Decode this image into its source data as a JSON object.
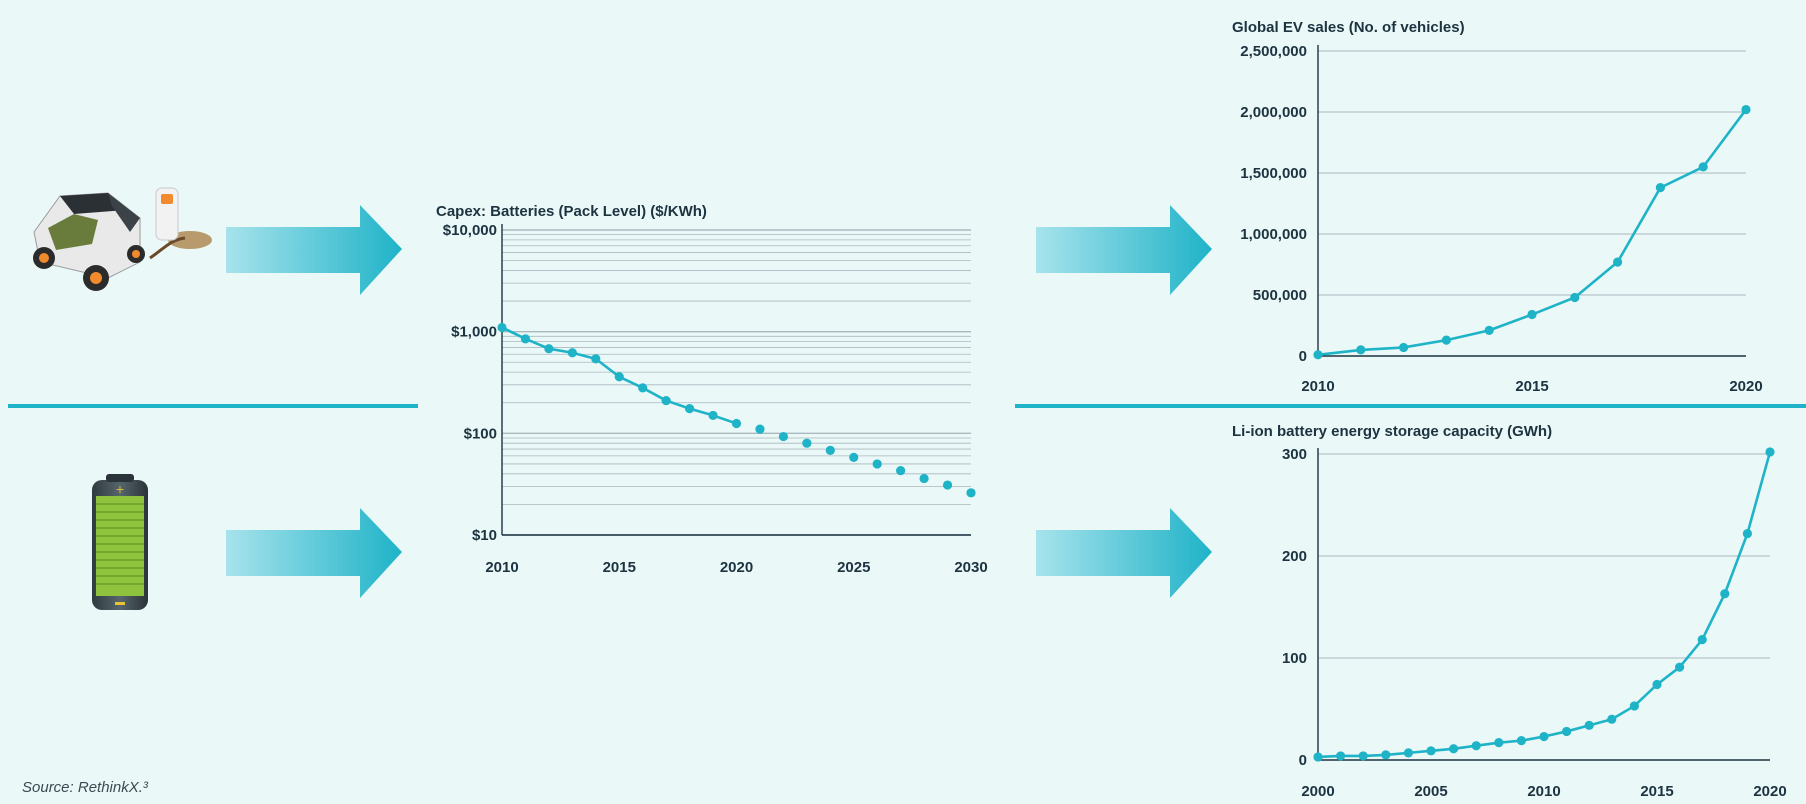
{
  "source_note": "Source: RethinkX.³",
  "colors": {
    "background": "#eaf8f8",
    "accent": "#1fb3c8",
    "text": "#1d3340",
    "grid": "#a9b9bf"
  },
  "icons": [
    "electric-car-charging-icon",
    "battery-icon"
  ],
  "chart_data": [
    {
      "type": "line",
      "title": "Capex: Batteries (Pack Level) ($/KWh)",
      "xlabel": "",
      "ylabel": "",
      "scale_y": "log",
      "ylim": [
        10,
        10000
      ],
      "xlim": [
        2010,
        2030
      ],
      "x_ticks": [
        "2010",
        "2015",
        "2020",
        "2025",
        "2030"
      ],
      "y_ticks": [
        "$10",
        "$100",
        "$1,000",
        "$10,000"
      ],
      "grid": true,
      "series": [
        {
          "style": "solid-line-with-markers",
          "x": [
            2010,
            2011,
            2012,
            2013,
            2014,
            2015,
            2016,
            2017,
            2018,
            2019,
            2020
          ],
          "y": [
            1100,
            850,
            680,
            620,
            540,
            360,
            280,
            210,
            175,
            150,
            125
          ]
        },
        {
          "style": "projected-dots",
          "x": [
            2021,
            2022,
            2023,
            2024,
            2025,
            2026,
            2027,
            2028,
            2029,
            2030
          ],
          "y": [
            110,
            93,
            80,
            68,
            58,
            50,
            43,
            36,
            31,
            26
          ]
        }
      ]
    },
    {
      "type": "line",
      "title": "Global EV sales (No. of vehicles)",
      "xlabel": "",
      "ylabel": "",
      "ylim": [
        0,
        2500000
      ],
      "xlim": [
        2010,
        2020
      ],
      "x_ticks": [
        "2010",
        "2015",
        "2020"
      ],
      "y_ticks": [
        "0",
        "500,000",
        "1,000,000",
        "1,500,000",
        "2,000,000",
        "2,500,000"
      ],
      "grid": true,
      "series": [
        {
          "x": [
            2010,
            2011,
            2012,
            2013,
            2014,
            2015,
            2016,
            2017,
            2018,
            2019,
            2020
          ],
          "y": [
            10000,
            50000,
            70000,
            130000,
            210000,
            340000,
            480000,
            770000,
            1380000,
            1550000,
            2020000
          ]
        }
      ]
    },
    {
      "type": "line",
      "title": "Li-ion battery energy storage capacity (GWh)",
      "xlabel": "",
      "ylabel": "",
      "ylim": [
        0,
        300
      ],
      "xlim": [
        2000,
        2020
      ],
      "x_ticks": [
        "2000",
        "2005",
        "2010",
        "2015",
        "2020"
      ],
      "y_ticks": [
        "0",
        "100",
        "200",
        "300"
      ],
      "grid": true,
      "series": [
        {
          "x": [
            2000,
            2001,
            2002,
            2003,
            2004,
            2005,
            2006,
            2007,
            2008,
            2009,
            2010,
            2011,
            2012,
            2013,
            2014,
            2015,
            2016,
            2017,
            2018,
            2019,
            2020
          ],
          "y": [
            3,
            4,
            4,
            5,
            7,
            9,
            11,
            14,
            17,
            19,
            23,
            28,
            34,
            40,
            53,
            74,
            91,
            118,
            163,
            222,
            302
          ]
        }
      ]
    }
  ]
}
